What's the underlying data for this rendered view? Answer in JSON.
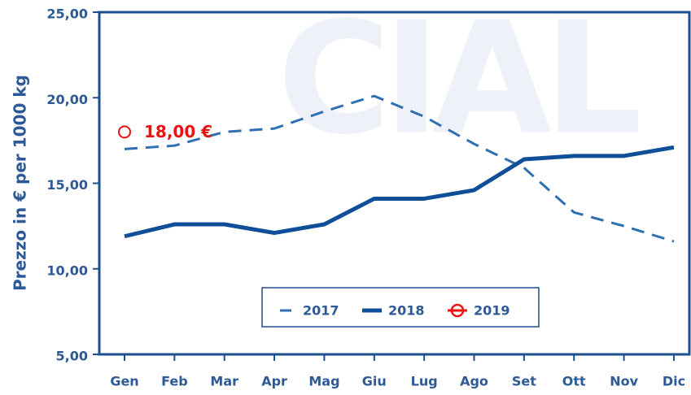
{
  "chart_data": {
    "type": "line",
    "watermark": "CIAL",
    "ylabel": "Prezzo in € per 1000 kg",
    "categories": [
      "Gen",
      "Feb",
      "Mar",
      "Apr",
      "Mag",
      "Giu",
      "Lug",
      "Ago",
      "Set",
      "Ott",
      "Nov",
      "Dic"
    ],
    "series": [
      {
        "name": "2017",
        "color": "#2f6fb3",
        "dashed": true,
        "values": [
          17.0,
          17.2,
          18.0,
          18.2,
          19.2,
          20.1,
          18.9,
          17.3,
          15.9,
          13.3,
          12.5,
          11.6
        ]
      },
      {
        "name": "2018",
        "color": "#0f4f99",
        "dashed": false,
        "values": [
          11.9,
          12.6,
          12.6,
          12.1,
          12.6,
          14.1,
          14.1,
          14.6,
          16.4,
          16.6,
          16.6,
          17.1
        ]
      },
      {
        "name": "2019",
        "color": "#ee1111",
        "marker": true,
        "values": [
          18.0,
          null,
          null,
          null,
          null,
          null,
          null,
          null,
          null,
          null,
          null,
          null
        ],
        "value_labels": [
          "18,00 €",
          null,
          null,
          null,
          null,
          null,
          null,
          null,
          null,
          null,
          null,
          null
        ]
      }
    ],
    "ylim": [
      5,
      25
    ],
    "yticks": [
      {
        "value": 5,
        "label": "5,00"
      },
      {
        "value": 10,
        "label": "10,00"
      },
      {
        "value": 15,
        "label": "15,00"
      },
      {
        "value": 20,
        "label": "20,00"
      },
      {
        "value": 25,
        "label": "25,00"
      }
    ],
    "legend": "bottom"
  }
}
